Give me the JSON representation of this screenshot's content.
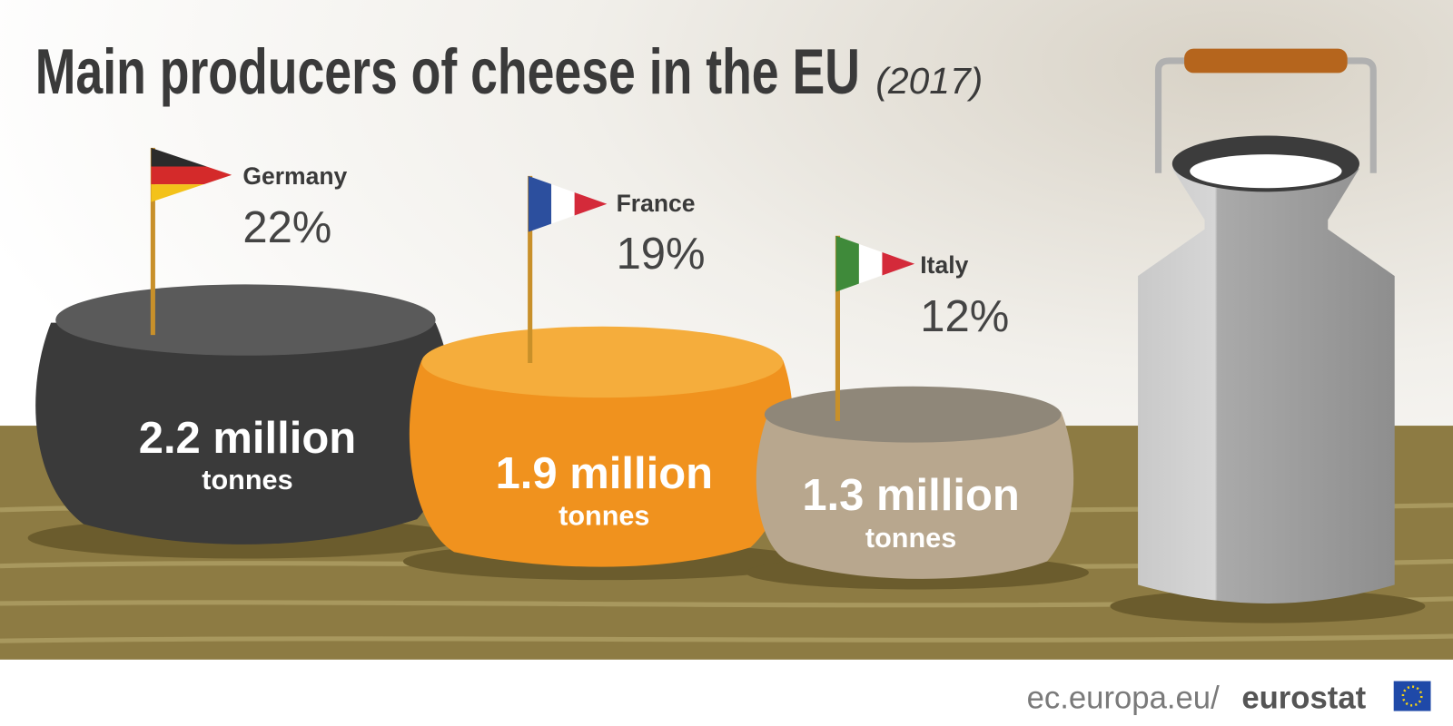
{
  "title": "Main producers of cheese in the EU",
  "title_year": "(2017)",
  "producers": [
    {
      "country": "Germany",
      "share": "22%",
      "amount": "2.2 million",
      "unit": "tonnes"
    },
    {
      "country": "France",
      "share": "19%",
      "amount": "1.9 million",
      "unit": "tonnes"
    },
    {
      "country": "Italy",
      "share": "12%",
      "amount": "1.3 million",
      "unit": "tonnes"
    }
  ],
  "footer": {
    "site": "ec.europa.eu/",
    "brand": "eurostat"
  }
}
